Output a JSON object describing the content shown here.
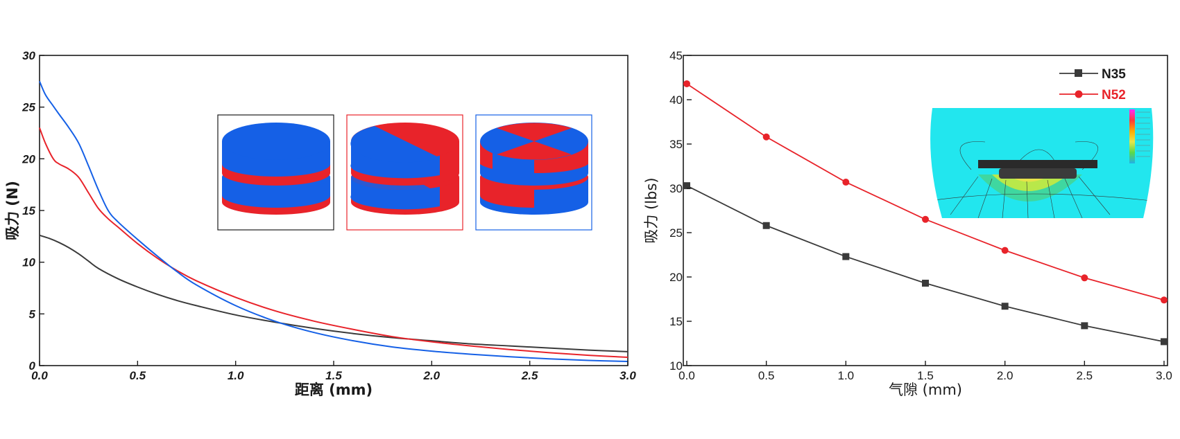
{
  "chart_data": [
    {
      "type": "line",
      "xlabel": "距离 (mm)",
      "ylabel": "吸力 (N)",
      "xlim": [
        0,
        3.0
      ],
      "ylim": [
        0,
        30
      ],
      "xticks": [
        "0.0",
        "0.5",
        "1.0",
        "1.5",
        "2.0",
        "2.5",
        "3.0"
      ],
      "yticks": [
        "0",
        "5",
        "10",
        "15",
        "20",
        "25",
        "30"
      ],
      "grid": false,
      "series": [
        {
          "color": "#3a3a3a",
          "x": [
            0,
            0.05,
            0.1,
            0.15,
            0.2,
            0.25,
            0.3,
            0.4,
            0.5,
            0.6,
            0.7,
            0.8,
            1.0,
            1.2,
            1.4,
            1.6,
            1.8,
            2.0,
            2.2,
            2.4,
            2.6,
            2.8,
            3.0
          ],
          "y": [
            12.6,
            12.3,
            11.9,
            11.4,
            10.8,
            10.1,
            9.4,
            8.4,
            7.6,
            6.9,
            6.3,
            5.8,
            4.9,
            4.2,
            3.6,
            3.1,
            2.7,
            2.4,
            2.1,
            1.9,
            1.7,
            1.5,
            1.35
          ]
        },
        {
          "color": "#e8232a",
          "x": [
            0,
            0.03,
            0.07,
            0.1,
            0.15,
            0.2,
            0.25,
            0.3,
            0.35,
            0.4,
            0.5,
            0.6,
            0.7,
            0.8,
            1.0,
            1.2,
            1.4,
            1.6,
            1.8,
            2.0,
            2.2,
            2.4,
            2.6,
            2.8,
            3.0
          ],
          "y": [
            23.0,
            21.5,
            20.0,
            19.5,
            19.0,
            18.2,
            16.7,
            15.2,
            14.2,
            13.4,
            11.8,
            10.4,
            9.2,
            8.2,
            6.6,
            5.3,
            4.3,
            3.5,
            2.8,
            2.3,
            1.9,
            1.55,
            1.25,
            1.0,
            0.8
          ]
        },
        {
          "color": "#1560e6",
          "x": [
            0,
            0.03,
            0.07,
            0.1,
            0.15,
            0.2,
            0.25,
            0.3,
            0.35,
            0.4,
            0.5,
            0.6,
            0.7,
            0.8,
            1.0,
            1.2,
            1.4,
            1.6,
            1.8,
            2.0,
            2.2,
            2.4,
            2.6,
            2.8,
            3.0
          ],
          "y": [
            27.5,
            26.2,
            25.1,
            24.3,
            23.0,
            21.5,
            19.3,
            17.0,
            15.0,
            13.9,
            12.2,
            10.6,
            9.1,
            7.8,
            5.8,
            4.3,
            3.2,
            2.4,
            1.8,
            1.4,
            1.1,
            0.85,
            0.65,
            0.5,
            0.4
          ]
        }
      ]
    },
    {
      "type": "line",
      "xlabel": "气隙 (mm)",
      "ylabel": "吸力 (lbs)",
      "xlim": [
        0,
        3.0
      ],
      "ylim": [
        10,
        45
      ],
      "xticks": [
        "0.0",
        "0.5",
        "1.0",
        "1.5",
        "2.0",
        "2.5",
        "3.0"
      ],
      "yticks": [
        "10",
        "15",
        "20",
        "25",
        "30",
        "35",
        "40",
        "45"
      ],
      "grid": false,
      "legend": "top-right",
      "series": [
        {
          "name": "N35",
          "color": "#3a3a3a",
          "marker": "square",
          "x": [
            0,
            0.5,
            1.0,
            1.5,
            2.0,
            2.5,
            3.0
          ],
          "y": [
            30.3,
            25.8,
            22.3,
            19.3,
            16.7,
            14.5,
            12.7
          ]
        },
        {
          "name": "N52",
          "color": "#e8232a",
          "marker": "circle",
          "x": [
            0,
            0.5,
            1.0,
            1.5,
            2.0,
            2.5,
            3.0
          ],
          "y": [
            41.8,
            35.8,
            30.7,
            26.5,
            23.0,
            19.9,
            17.4
          ]
        }
      ]
    }
  ],
  "colors": {
    "magnet_blue": "#1560e6",
    "magnet_red": "#e8232a",
    "field_bg": "#22e6ee"
  }
}
